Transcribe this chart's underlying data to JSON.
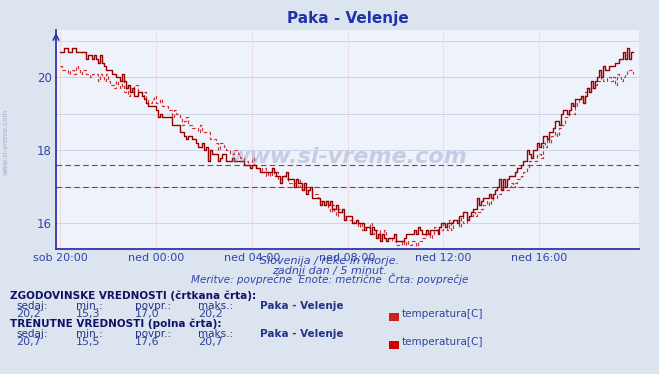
{
  "title": "Paka - Velenje",
  "bg_color": "#dce4f0",
  "plot_bg_color": "#eef2fa",
  "grid_color": "#c8d0e8",
  "grid_color_red": "#e8b0b0",
  "axis_color": "#3333aa",
  "line_color_solid": "#990000",
  "line_color_dashed": "#cc3333",
  "hline_color": "#cc2222",
  "ylabel_color": "#3344aa",
  "title_color": "#2233aa",
  "text_color": "#3344aa",
  "xlabel_labels": [
    "sob 20:00",
    "ned 00:00",
    "ned 04:00",
    "ned 08:00",
    "ned 12:00",
    "ned 16:00"
  ],
  "ylim_min": 15.3,
  "ylim_max": 21.3,
  "yticks": [
    16,
    18,
    20
  ],
  "hlines": [
    17.0,
    17.6
  ],
  "watermark_text": "www.si-vreme.com",
  "subtitle1": "Slovenija / reke in morje.",
  "subtitle2": "zadnji dan / 5 minut.",
  "subtitle3": "Meritve: povprečne  Enote: metrične  Črta: povprečje",
  "legend_title_hist": "ZGODOVINSKE VREDNOSTI (črtkana črta):",
  "legend_headers": [
    "sedaj:",
    "min.:",
    "povpr.:",
    "maks.:"
  ],
  "hist_values": [
    "20,2",
    "15,3",
    "17,0",
    "20,2"
  ],
  "curr_values": [
    "20,7",
    "15,5",
    "17,6",
    "20,7"
  ],
  "legend_station": "Paka - Velenje",
  "legend_param": "temperatura[C]",
  "legend_title_curr": "TRENUTNE VREDNOSTI (polna črta):",
  "icon_color_hist": "#cc2222",
  "icon_color_curr": "#cc0000"
}
